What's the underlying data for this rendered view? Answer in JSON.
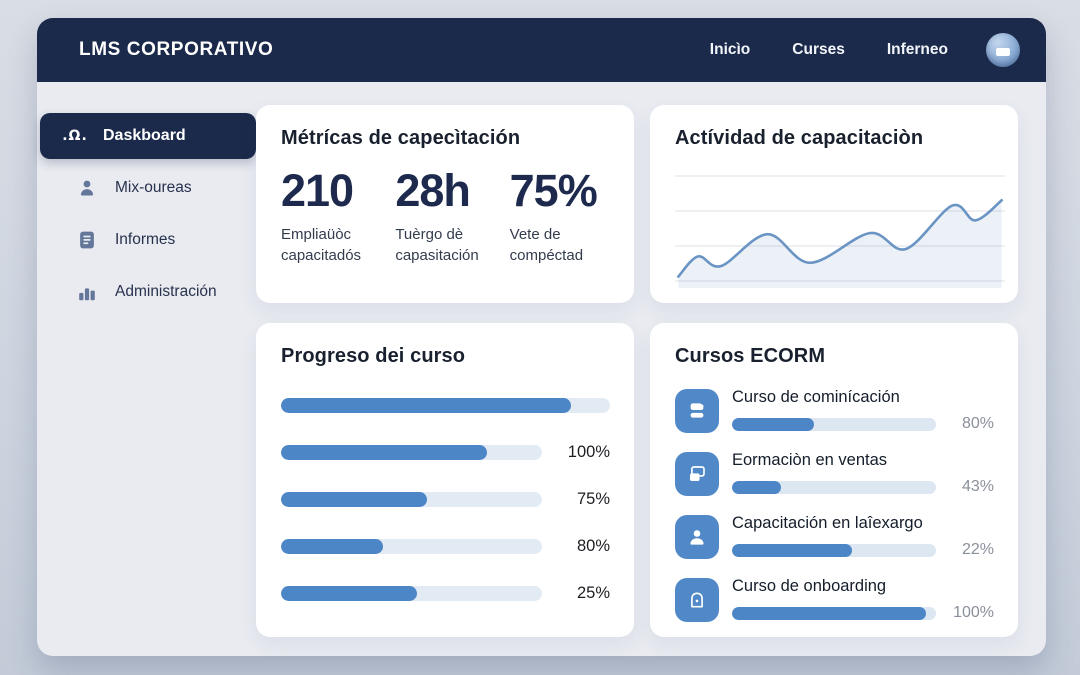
{
  "colors": {
    "navy": "#1b2a4a",
    "accent_blue": "#4c86c6",
    "icon_blue": "#5189c8",
    "track": "#dde7f2",
    "panel_bg": "#e9ebf1",
    "percent_gray": "#8a909b"
  },
  "navbar": {
    "brand": "LMS CORPORATIVO",
    "links": [
      {
        "label": "Inicìo"
      },
      {
        "label": "Curses"
      },
      {
        "label": "Inferneo"
      }
    ]
  },
  "sidebar": {
    "items": [
      {
        "label": "Daskboard",
        "icon": "dashboard-icon",
        "icon_glyph": ".Ω.",
        "active": true
      },
      {
        "label": "Mix-oureas",
        "icon": "user-icon",
        "active": false
      },
      {
        "label": "Informes",
        "icon": "report-icon",
        "active": false
      },
      {
        "label": "Administración",
        "icon": "bar-chart-icon",
        "active": false
      }
    ]
  },
  "metrics_card": {
    "title": "Métrícas de capecìtación",
    "metrics": [
      {
        "value": "210",
        "label": "Empliaüòc capacitadós"
      },
      {
        "value": "28h",
        "label": "Tuèrgo dè capasitación"
      },
      {
        "value": "75%",
        "label": "Vete de compéctad"
      }
    ]
  },
  "activity_card": {
    "title": "Actívidad de capacitaciòn"
  },
  "chart_data": {
    "type": "area",
    "title": "Actívidad de capacitaciòn",
    "x_pct": [
      1,
      7,
      14,
      28,
      41,
      59,
      70,
      84,
      91,
      99
    ],
    "y": [
      7,
      26,
      17,
      47,
      20,
      48,
      33,
      74,
      60,
      79
    ],
    "ylim": [
      0,
      100
    ],
    "xlabel": "",
    "ylabel": "",
    "tick_labels_visible": false,
    "gridline_count": 4,
    "legend": null,
    "line_color": "#6a94c4",
    "area_fill": "rgba(110,145,195,0.13)"
  },
  "progress_card": {
    "title": "Progreso dei curso",
    "bars": [
      {
        "fill_pct": 88,
        "label": ""
      },
      {
        "fill_pct": 79,
        "label": "100%"
      },
      {
        "fill_pct": 56,
        "label": "75%"
      },
      {
        "fill_pct": 39,
        "label": "80%"
      },
      {
        "fill_pct": 52,
        "label": "25%"
      }
    ]
  },
  "courses_card": {
    "title": "Cursos ECORM",
    "items": [
      {
        "icon": "notes-icon",
        "label": "Curso de cominícación",
        "fill_pct": 40,
        "percent": "80%"
      },
      {
        "icon": "windows-icon",
        "label": "Eormaciòn en ventas",
        "fill_pct": 24,
        "percent": "43%"
      },
      {
        "icon": "person-icon",
        "label": "Capacitación en laîexargo",
        "fill_pct": 59,
        "percent": "22%"
      },
      {
        "icon": "lock-icon",
        "label": "Curso de onboarding",
        "fill_pct": 95,
        "percent": "100%"
      }
    ]
  }
}
